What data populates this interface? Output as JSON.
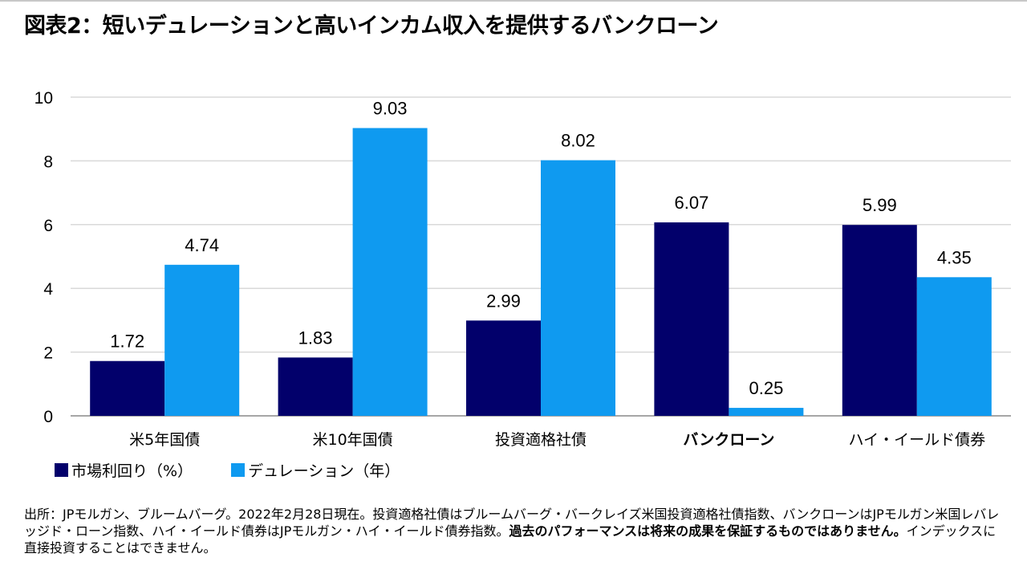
{
  "title": "図表2：短いデュレーションと高いインカム収入を提供するバンクローン",
  "chart_data": {
    "type": "bar",
    "categories": [
      "米5年国債",
      "米10年国債",
      "投資適格社債",
      "バンクローン",
      "ハイ・イールド債券"
    ],
    "bold_category": "バンクローン",
    "series": [
      {
        "name": "市場利回り（%）",
        "color": "#02006b",
        "values": [
          1.72,
          1.83,
          2.99,
          6.07,
          5.99
        ]
      },
      {
        "name": "デュレーション（年）",
        "color": "#0f9af0",
        "values": [
          4.74,
          9.03,
          8.02,
          0.25,
          4.35
        ]
      }
    ],
    "ylim": [
      0,
      10
    ],
    "yticks": [
      0,
      2,
      4,
      6,
      8,
      10
    ],
    "grid": true,
    "legend_position": "bottom-left",
    "data_labels": true
  },
  "footnote": {
    "normal_1": "出所：JPモルガン、ブルームバーグ。2022年2月28日現在。投資適格社債はブルームバーグ・バークレイズ米国投資適格社債指数、バンクローンはJPモルガン米国レバレッジド・ローン指数、ハイ・イールド債券はJPモルガン・ハイ・イールド債券指数。",
    "bold": "過去のパフォーマンスは将来の成果を保証するものではありません。",
    "normal_2": "インデックスに直接投資することはできません。"
  }
}
